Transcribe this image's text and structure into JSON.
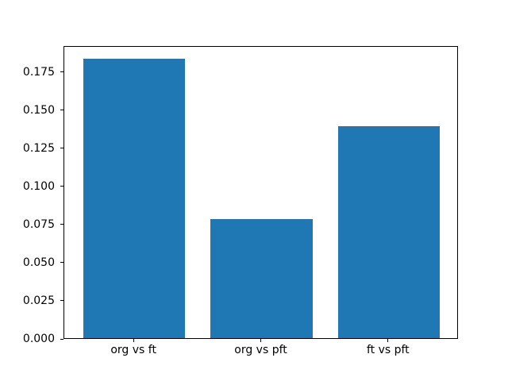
{
  "chart_data": {
    "type": "bar",
    "categories": [
      "org vs ft",
      "org vs pft",
      "ft vs pft"
    ],
    "values": [
      0.183,
      0.078,
      0.139
    ],
    "title": "",
    "xlabel": "",
    "ylabel": "",
    "ylim": [
      0,
      0.192
    ],
    "xlim": [
      -0.55,
      2.55
    ],
    "yticks": [
      0.0,
      0.025,
      0.05,
      0.075,
      0.1,
      0.125,
      0.15,
      0.175
    ],
    "ytick_decimals": 3,
    "bar_width": 0.8,
    "bar_color": "#1f77b4",
    "axis_color": "#000000",
    "background_color": "#ffffff",
    "grid": false,
    "legend": null
  }
}
